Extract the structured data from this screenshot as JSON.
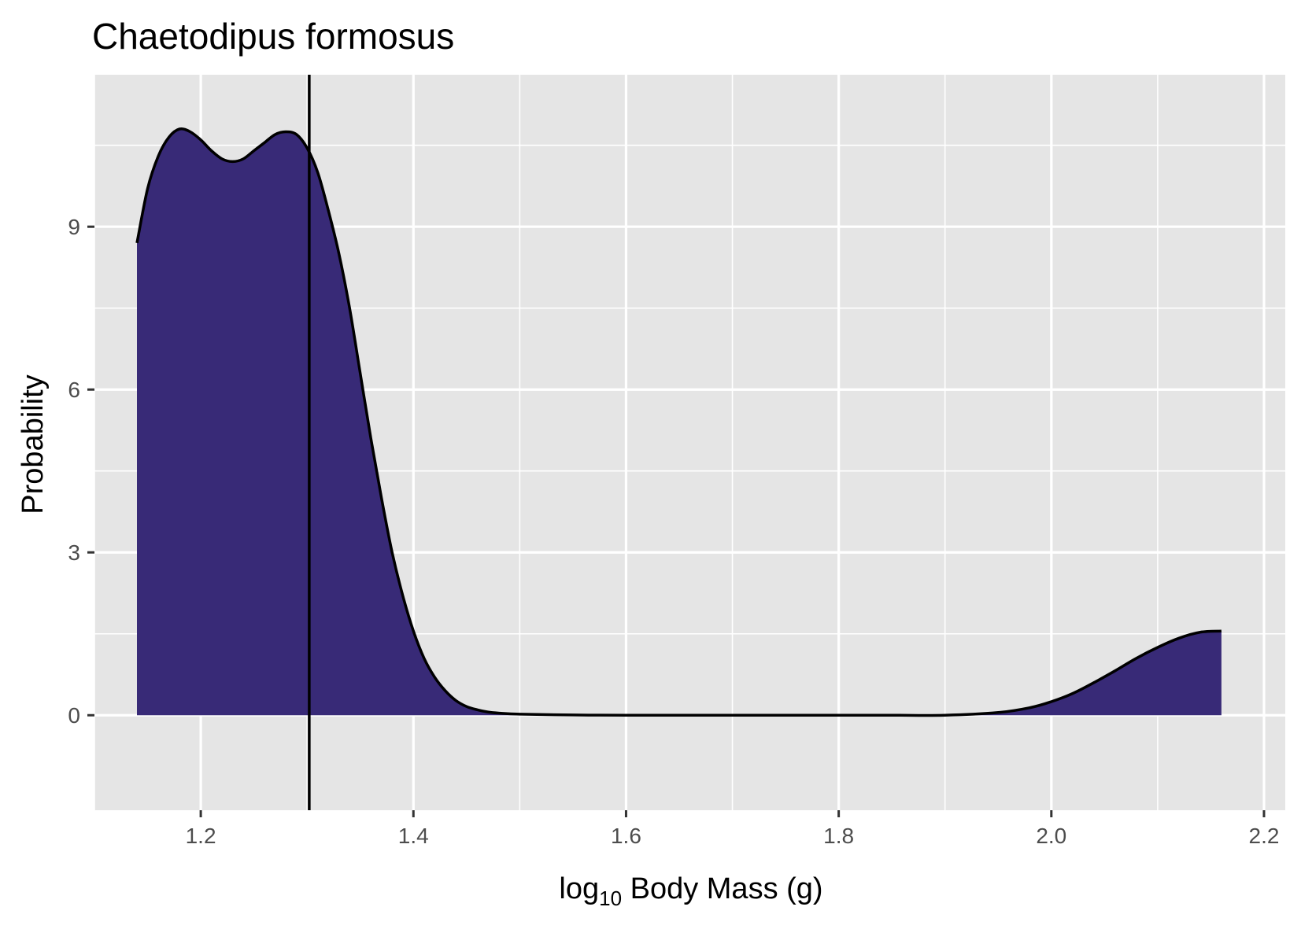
{
  "chart_data": {
    "type": "area",
    "title": "Chaetodipus formosus",
    "xlabel_parts": {
      "base": "log",
      "subscript": "10",
      "rest": " Body Mass (g)"
    },
    "ylabel": "Probability",
    "xlim": [
      1.1,
      2.22
    ],
    "ylim": [
      -1.75,
      11.8
    ],
    "x_ticks": [
      1.2,
      1.4,
      1.6,
      1.8,
      2.0,
      2.2
    ],
    "x_tick_labels": [
      "1.2",
      "1.4",
      "1.6",
      "1.8",
      "2.0",
      "2.2"
    ],
    "x_minor_ticks": [
      1.1,
      1.3,
      1.5,
      1.7,
      1.9,
      2.1
    ],
    "y_ticks": [
      0,
      3,
      6,
      9
    ],
    "y_tick_labels": [
      "0",
      "3",
      "6",
      "9"
    ],
    "y_minor_ticks": [
      1.5,
      4.5,
      7.5,
      10.5
    ],
    "grid": true,
    "panel_background": "#e5e5e5",
    "fill_color": "#382a77",
    "line_color": "#000000",
    "vline_x": 1.302,
    "series": [
      {
        "x": [
          1.14,
          1.15,
          1.16,
          1.17,
          1.18,
          1.19,
          1.2,
          1.21,
          1.22,
          1.23,
          1.24,
          1.25,
          1.26,
          1.27,
          1.28,
          1.29,
          1.3,
          1.31,
          1.32,
          1.33,
          1.34,
          1.35,
          1.36,
          1.37,
          1.38,
          1.39,
          1.4,
          1.41,
          1.42,
          1.43,
          1.44,
          1.45,
          1.46,
          1.47,
          1.48,
          1.5,
          1.55,
          1.6,
          1.7,
          1.8,
          1.85,
          1.9,
          1.95,
          1.98,
          2.0,
          2.02,
          2.04,
          2.06,
          2.08,
          2.1,
          2.12,
          2.14,
          2.16
        ],
        "y": [
          8.7,
          9.7,
          10.3,
          10.65,
          10.8,
          10.75,
          10.6,
          10.4,
          10.25,
          10.2,
          10.25,
          10.4,
          10.55,
          10.7,
          10.75,
          10.7,
          10.45,
          10.0,
          9.3,
          8.5,
          7.5,
          6.3,
          5.1,
          4.0,
          3.0,
          2.2,
          1.55,
          1.05,
          0.7,
          0.45,
          0.27,
          0.16,
          0.1,
          0.06,
          0.04,
          0.02,
          0.005,
          0.0,
          0.0,
          0.0,
          0.0,
          0.0,
          0.05,
          0.14,
          0.25,
          0.4,
          0.6,
          0.82,
          1.05,
          1.25,
          1.42,
          1.53,
          1.55
        ]
      }
    ]
  }
}
